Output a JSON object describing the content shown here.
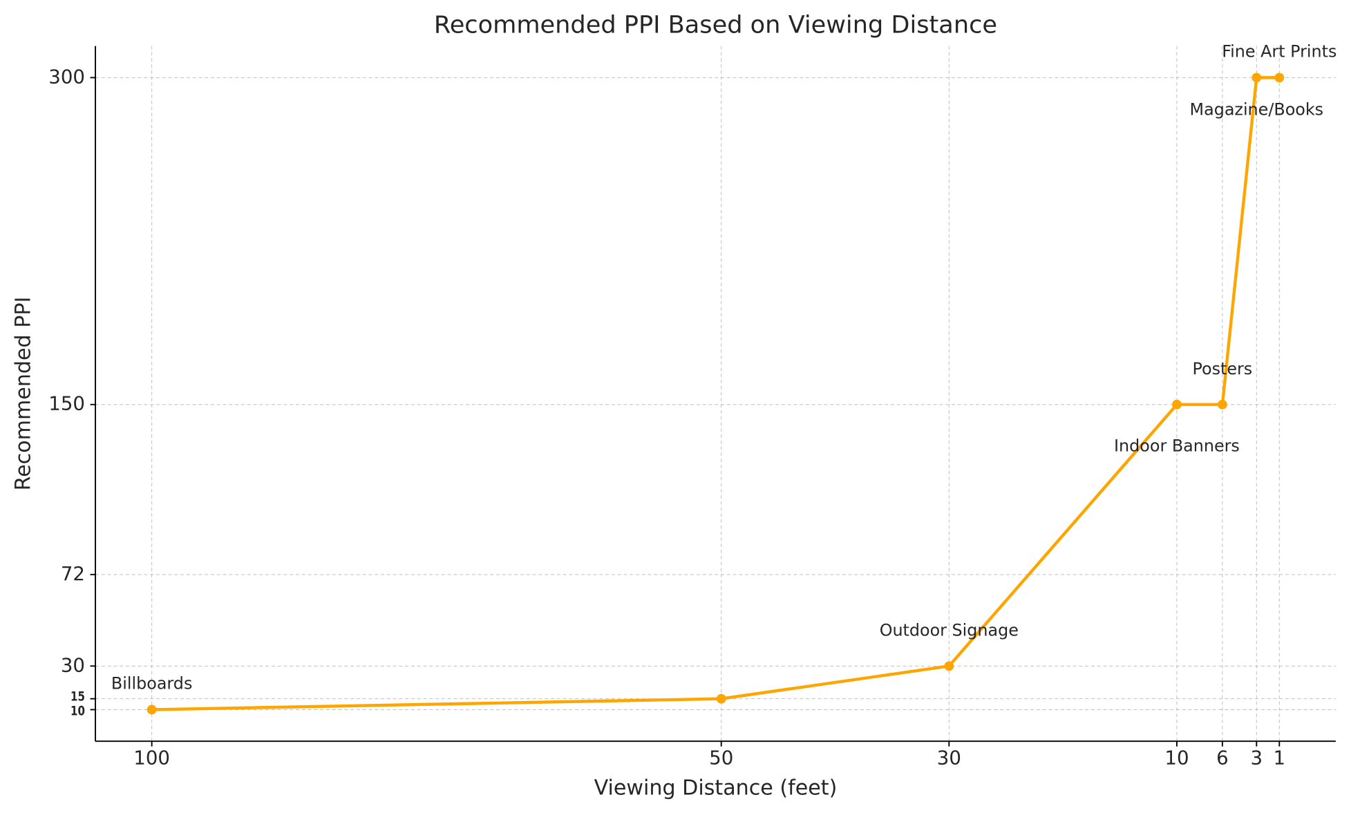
{
  "chart_data": {
    "type": "line",
    "title": "Recommended PPI Based on Viewing Distance",
    "x_label": "Viewing Distance (feet)",
    "y_label": "Recommended PPI",
    "x": [
      100,
      50,
      30,
      10,
      6,
      3,
      1
    ],
    "series": [
      {
        "name": "Recommended PPI",
        "color": "#ffa500",
        "values": [
          10,
          15,
          30,
          150,
          150,
          300,
          300
        ]
      }
    ],
    "point_labels": [
      "Billboards",
      null,
      "Outdoor Signage",
      "Indoor Banners",
      "Posters",
      "Magazine/Books",
      "Fine Art Prints"
    ],
    "xlim": [
      104.95,
      -3.95
    ],
    "ylim": [
      -4.5,
      314.5
    ],
    "xticks": [
      100,
      50,
      30,
      10,
      6,
      3,
      1
    ],
    "yticks": [
      10,
      15,
      30,
      72,
      150,
      300
    ],
    "grid": true,
    "legend": false
  }
}
